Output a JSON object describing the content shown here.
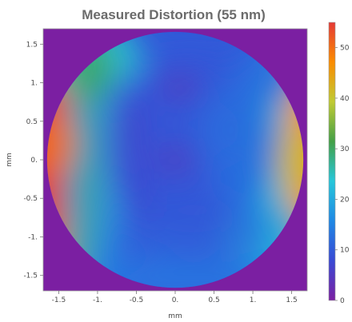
{
  "chart_data": {
    "type": "heatmap",
    "title": "Measured Distortion (55 nm)",
    "xlabel": "mm",
    "ylabel": "mm",
    "xlim": [
      -1.7,
      1.7
    ],
    "ylim": [
      -1.7,
      1.7
    ],
    "x_ticks": [
      -1.5,
      -1.0,
      -0.5,
      0.0,
      0.5,
      1.0,
      1.5
    ],
    "y_ticks": [
      -1.5,
      -1.0,
      -0.5,
      0.0,
      0.5,
      1.0,
      1.5
    ],
    "x_tick_labels": [
      "-1.5",
      "-1.",
      "-0.5",
      "0.",
      "0.5",
      "1.",
      "1.5"
    ],
    "y_tick_labels": [
      "-1.5",
      "-1.",
      "-0.5",
      "0.",
      "0.5",
      "1.",
      "1.5"
    ],
    "aperture_radius_mm": 1.65,
    "background_value": 0,
    "colorbar": {
      "min": 0,
      "max": 55,
      "ticks": [
        0,
        10,
        20,
        30,
        40,
        50
      ],
      "tick_labels": [
        "0",
        "10",
        "20",
        "30",
        "40",
        "50"
      ],
      "colors": [
        "#7b1fa2",
        "#3949d4",
        "#1e88e5",
        "#26c6da",
        "#43a047",
        "#c0ca33",
        "#fb8c00",
        "#e53935"
      ]
    },
    "features": [
      {
        "name": "left-edge-peak",
        "x": -1.6,
        "y": 0.2,
        "value": 50
      },
      {
        "name": "right-edge-peak",
        "x": 1.62,
        "y": 0.0,
        "value": 42
      },
      {
        "name": "upper-left-rim",
        "x": -1.1,
        "y": 1.2,
        "value": 30
      },
      {
        "name": "low-spot-upper",
        "x": 0.05,
        "y": 0.95,
        "value": 4
      },
      {
        "name": "low-spot-center",
        "x": 0.0,
        "y": 0.0,
        "value": 4
      },
      {
        "name": "low-band-left",
        "x": -0.55,
        "y": -0.2,
        "value": 8
      },
      {
        "name": "mid-band",
        "x": 0.6,
        "y": 0.4,
        "value": 12
      }
    ]
  }
}
